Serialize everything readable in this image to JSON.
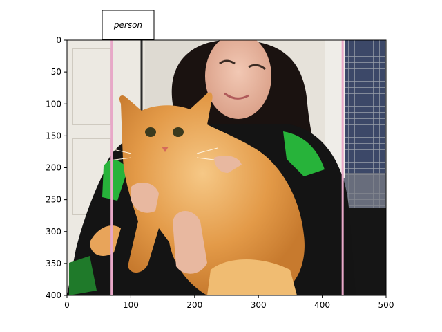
{
  "image": {
    "description_icon": "photo-woman-holding-orange-cat",
    "colors": {
      "background_door": "#e4e0d8",
      "hair": "#1a1210",
      "skin": "#e8b8a0",
      "jacket": "#121212",
      "jacket_green": "#27b33a",
      "cat_fur": "#e09a4a",
      "cat_fur_light": "#f3c27c",
      "cage": "#6d6e78"
    }
  },
  "annotation": {
    "label": "person",
    "box_color": "#e8a8c8",
    "box_x": [
      70,
      432
    ],
    "box_y": [
      0,
      400
    ]
  },
  "axes": {
    "x_range": [
      0,
      500
    ],
    "y_range": [
      0,
      400
    ],
    "x_ticks": [
      0,
      100,
      200,
      300,
      400,
      500
    ],
    "y_ticks": [
      0,
      50,
      100,
      150,
      200,
      250,
      300,
      350,
      400
    ],
    "x_tick_labels": [
      "0",
      "100",
      "200",
      "300",
      "400",
      "500"
    ],
    "y_tick_labels": [
      "0",
      "50",
      "100",
      "150",
      "200",
      "250",
      "300",
      "350",
      "400"
    ]
  }
}
